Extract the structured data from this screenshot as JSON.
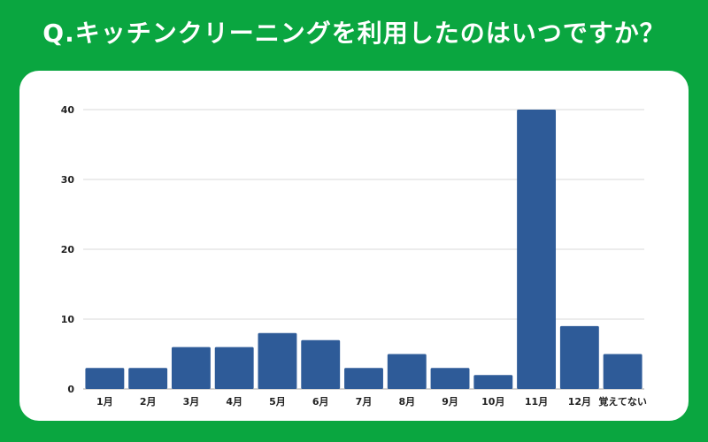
{
  "title": "Q.キッチンクリーニングを利用したのはいつですか？",
  "colors": {
    "background": "#0aa640",
    "card": "#ffffff",
    "bar": "#2e5b98",
    "grid": "#d9d9d9"
  },
  "chart_data": {
    "type": "bar",
    "title": "",
    "xlabel": "",
    "ylabel": "",
    "categories": [
      "1月",
      "2月",
      "3月",
      "4月",
      "5月",
      "6月",
      "7月",
      "8月",
      "9月",
      "10月",
      "11月",
      "12月",
      "覚えてない"
    ],
    "values": [
      3,
      3,
      6,
      6,
      8,
      7,
      3,
      5,
      3,
      2,
      40,
      9,
      5
    ],
    "ylim": [
      0,
      40
    ],
    "yticks": [
      0,
      10,
      20,
      30,
      40
    ],
    "grid": true,
    "legend": "none"
  }
}
